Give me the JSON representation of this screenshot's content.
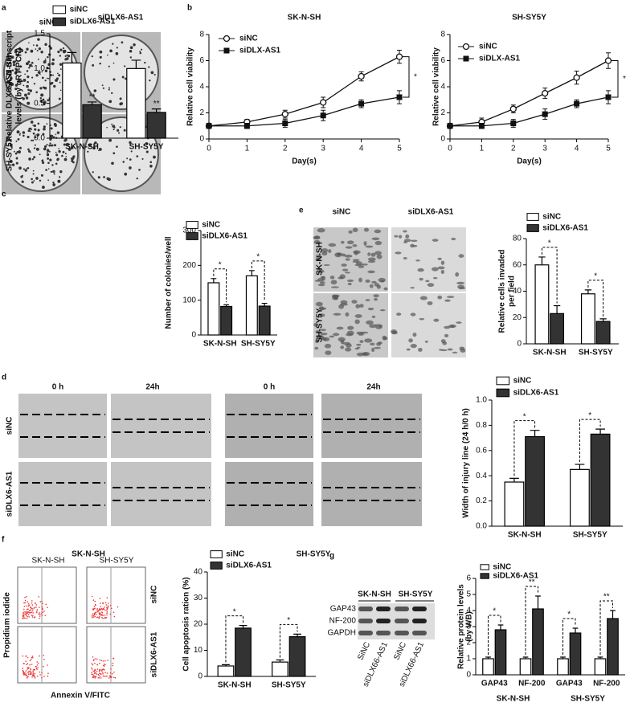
{
  "chart_data": [
    {
      "type": "bar",
      "ylabel": [
        "Relative DLX6-AS1 transcript",
        "levels (by qRT-PCR)"
      ],
      "categories": [
        "SK-N-SH",
        "SH-SY5Y"
      ],
      "series": [
        {
          "name": "siNC",
          "color": "#ffffff",
          "values": [
            1.08,
            1.0
          ],
          "errors": [
            0.15,
            0.12
          ]
        },
        {
          "name": "siDLX6-AS1",
          "color": "#333333",
          "values": [
            0.48,
            0.37
          ],
          "errors": [
            0.04,
            0.05
          ]
        }
      ],
      "ylim": [
        0,
        1.5
      ],
      "yticks": [
        {
          "value": 0,
          "label": "0.0"
        },
        0.5,
        {
          "value": 1,
          "label": "1.0"
        },
        1.5
      ],
      "annotations": [
        "**",
        "**"
      ],
      "brackets": false
    },
    {
      "type": "line",
      "title": "SK-N-SH",
      "xlabel": "Day(s)",
      "ylabel": [
        "Relative cell viability"
      ],
      "x": [
        0,
        1,
        2,
        3,
        4,
        5
      ],
      "series": [
        {
          "name": "siNC",
          "color": "#111111",
          "marker": "circle-open",
          "values": [
            1,
            1.3,
            1.9,
            2.8,
            4.8,
            6.3
          ],
          "errors": [
            0.2,
            0.2,
            0.3,
            0.4,
            0.35,
            0.5
          ]
        },
        {
          "name": "siDLX-AS1",
          "color": "#111111",
          "marker": "square",
          "values": [
            1,
            1.0,
            1.2,
            1.8,
            2.7,
            3.2
          ],
          "errors": [
            0.2,
            0.2,
            0.3,
            0.4,
            0.3,
            0.5
          ]
        }
      ],
      "xlim": [
        0,
        5
      ],
      "xticks": [
        0,
        1,
        2,
        3,
        4,
        5
      ],
      "ylim": [
        0,
        8
      ],
      "yticks": [
        0,
        2,
        4,
        6,
        8
      ],
      "annotations": [
        "*"
      ]
    },
    {
      "type": "line",
      "title": "SH-SY5Y",
      "xlabel": "Day(s)",
      "ylabel": [
        "Relative cell viability"
      ],
      "x": [
        0,
        1,
        2,
        3,
        4,
        5
      ],
      "series": [
        {
          "name": "siNC",
          "color": "#111111",
          "marker": "circle-open",
          "values": [
            1,
            1.3,
            2.3,
            3.5,
            4.7,
            6.0
          ],
          "errors": [
            0.2,
            0.3,
            0.3,
            0.4,
            0.5,
            0.6
          ]
        },
        {
          "name": "siDLX-AS1",
          "color": "#111111",
          "marker": "square",
          "values": [
            1,
            1.0,
            1.2,
            1.9,
            2.7,
            3.2
          ],
          "errors": [
            0.2,
            0.2,
            0.3,
            0.4,
            0.3,
            0.5
          ]
        }
      ],
      "xlim": [
        0,
        5
      ],
      "xticks": [
        0,
        1,
        2,
        3,
        4,
        5
      ],
      "ylim": [
        0,
        8
      ],
      "yticks": [
        0,
        2,
        4,
        6,
        8
      ],
      "annotations": [
        "*"
      ]
    },
    {
      "type": "bar",
      "ylabel": [
        "Number of colonies/well"
      ],
      "categories": [
        "SK-N-SH",
        "SH-SY5Y"
      ],
      "series": [
        {
          "name": "siNC",
          "color": "#ffffff",
          "values": [
            150,
            170
          ],
          "errors": [
            12,
            15
          ]
        },
        {
          "name": "siDLX6-AS1",
          "color": "#333333",
          "values": [
            82,
            83
          ],
          "errors": [
            5,
            8
          ]
        }
      ],
      "ylim": [
        0,
        300
      ],
      "yticks": [
        0,
        100,
        200,
        300
      ],
      "annotations": [
        "*",
        "*"
      ],
      "brackets": true
    },
    {
      "type": "bar",
      "ylabel": [
        "Relative cells invaded",
        "per field"
      ],
      "categories": [
        "SK-N-SH",
        "SH-SY5Y"
      ],
      "series": [
        {
          "name": "siNC",
          "color": "#ffffff",
          "values": [
            60,
            38
          ],
          "errors": [
            6,
            3
          ]
        },
        {
          "name": "siDLX6-AS1",
          "color": "#333333",
          "values": [
            23,
            17
          ],
          "errors": [
            6,
            2
          ]
        }
      ],
      "ylim": [
        0,
        80
      ],
      "yticks": [
        0,
        20,
        40,
        60,
        80
      ],
      "annotations": [
        "*",
        "*"
      ],
      "brackets": true
    },
    {
      "type": "bar",
      "ylabel": [
        "Width of injury line (24 h/0 h)"
      ],
      "categories": [
        "SK-N-SH",
        "SH-SY5Y"
      ],
      "series": [
        {
          "name": "siNC",
          "color": "#ffffff",
          "values": [
            0.35,
            0.45
          ],
          "errors": [
            0.03,
            0.04
          ]
        },
        {
          "name": "siDLX6-AS1",
          "color": "#333333",
          "values": [
            0.71,
            0.73
          ],
          "errors": [
            0.05,
            0.04
          ]
        }
      ],
      "ylim": [
        0,
        1.0
      ],
      "yticks": [
        {
          "value": 0,
          "label": "0.0"
        },
        0.2,
        0.4,
        0.6,
        0.8,
        {
          "value": 1.0,
          "label": "1.0"
        }
      ],
      "annotations": [
        "*",
        "*"
      ],
      "brackets": true
    },
    {
      "type": "bar",
      "ylabel": [
        "Cell apoptosis ration (%)"
      ],
      "categories": [
        "SK-N-SH",
        "SH-SY5Y"
      ],
      "series": [
        {
          "name": "siNC",
          "color": "#ffffff",
          "values": [
            4,
            5.5
          ],
          "errors": [
            0.5,
            0.8
          ]
        },
        {
          "name": "siDLX6-AS1",
          "color": "#333333",
          "values": [
            18.5,
            15.2
          ],
          "errors": [
            1,
            1
          ]
        }
      ],
      "ylim": [
        0,
        40
      ],
      "yticks": [
        0,
        10,
        20,
        30,
        40
      ],
      "annotations": [
        "*",
        "*"
      ],
      "brackets": true
    },
    {
      "type": "bar",
      "ylabel": [
        "Relative protein levels",
        "(by WB)"
      ],
      "categories": [
        "GAP43",
        "NF-200",
        "GAP43",
        "NF-200"
      ],
      "groups": [
        "SK-N-SH",
        "SH-SY5Y"
      ],
      "series": [
        {
          "name": "siNC",
          "color": "#ffffff",
          "values": [
            1,
            1,
            1,
            1
          ],
          "errors": [
            0.1,
            0.1,
            0.1,
            0.1
          ]
        },
        {
          "name": "siDLX6-AS1",
          "color": "#333333",
          "values": [
            2.8,
            4.1,
            2.6,
            3.5
          ],
          "errors": [
            0.3,
            0.8,
            0.3,
            0.5
          ]
        }
      ],
      "ylim": [
        0,
        6
      ],
      "yticks": [
        0,
        1,
        2,
        3,
        4,
        5,
        6
      ],
      "annotations": [
        "*",
        "**",
        "*",
        "**"
      ],
      "brackets": true
    }
  ],
  "figure": {
    "panel_letters": [
      "a",
      "b",
      "c",
      "d",
      "e",
      "f",
      "g"
    ],
    "colony": {
      "columns": [
        "siNC",
        "siDLX6-AS1"
      ],
      "rows": [
        "SK-N-SH",
        "SH-SY5Y"
      ]
    },
    "invasion": {
      "columns": [
        "siNC",
        "siDLX6-AS1"
      ],
      "rows": [
        "SK-N-SH",
        "SH-SY5Y"
      ]
    },
    "wound": {
      "times": [
        "0 h",
        "24h",
        "0 h",
        "24h"
      ],
      "rows": [
        "siNC",
        "siDLX6-AS1"
      ],
      "cell_lines": [
        "SK-N-SH",
        "SH-SY5Y"
      ]
    },
    "flow": {
      "columns": [
        "SK-N-SH",
        "SH-SY5Y"
      ],
      "rows": [
        "siNC",
        "siDLX6-AS1"
      ],
      "ylabel": "Propidium iodide",
      "xlabel": "Annexin V/FITC"
    },
    "western": {
      "cell_lines": [
        "SK-N-SH",
        "SH-SY5Y"
      ],
      "proteins": [
        "GAP43",
        "NF-200",
        "GAPDH"
      ],
      "lanes": [
        "SiNC",
        "siDLX66-AS1",
        "SiNC",
        "siDLX66-AS1"
      ]
    }
  }
}
